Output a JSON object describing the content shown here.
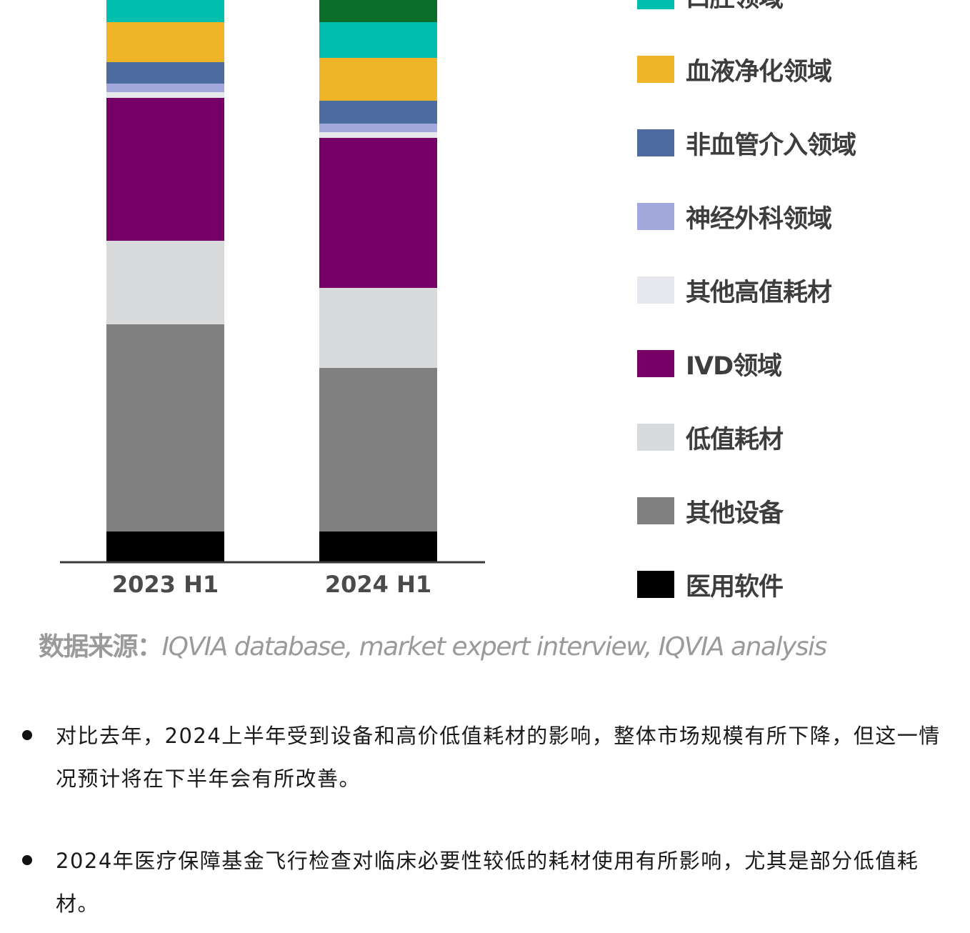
{
  "chart_data": {
    "type": "bar",
    "stacked": true,
    "categories": [
      "2023 H1",
      "2024 H1"
    ],
    "series": [
      {
        "name": "医用软件",
        "color": "#000000",
        "values": [
          4.2,
          4.2
        ]
      },
      {
        "name": "其他设备",
        "color": "#808080",
        "values": [
          29.0,
          22.9
        ]
      },
      {
        "name": "低值耗材",
        "color": "#d9dadc",
        "values": [
          11.7,
          11.2
        ]
      },
      {
        "name": "IVD领域",
        "color": "#760066",
        "values": [
          20.0,
          21.0
        ]
      },
      {
        "name": "其他高值耗材",
        "color": "#e6e8ee",
        "values": [
          0.8,
          0.8
        ]
      },
      {
        "name": "神经外科领域",
        "color": "#a3a8dc",
        "values": [
          1.2,
          1.2
        ]
      },
      {
        "name": "非血管介入领域",
        "color": "#4c6b9e",
        "values": [
          3.0,
          3.2
        ]
      },
      {
        "name": "血液净化领域",
        "color": "#f0b428",
        "values": [
          5.6,
          6.0
        ]
      },
      {
        "name": "口腔领域",
        "color": "#00bfae",
        "values": [
          3.6,
          5.0
        ]
      },
      {
        "name": "",
        "color": "#0a6e2a",
        "values": [
          0,
          3.6
        ]
      }
    ],
    "legend_position": "right"
  },
  "source": {
    "label": "数据来源：",
    "text": "IQVIA database, market expert interview, IQVIA analysis"
  },
  "bullets": [
    "对比去年，2024上半年受到设备和高价低值耗材的影响，整体市场规模有所下降，但这一情况预计将在下半年会有所改善。",
    "2024年医疗保障基金飞行检查对临床必要性较低的耗材使用有所影响，尤其是部分低值耗材。"
  ]
}
